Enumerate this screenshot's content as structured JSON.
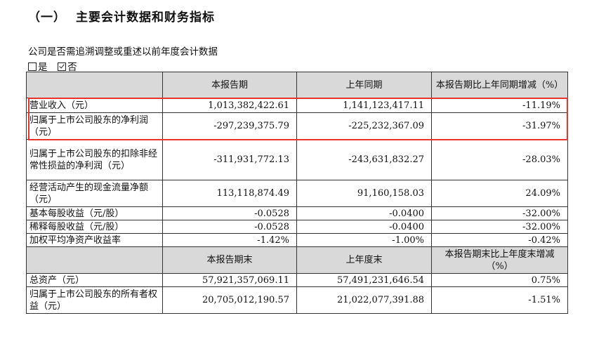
{
  "heading": {
    "paren": "（一）",
    "title": "主要会计数据和财务指标"
  },
  "question": "公司是否需追溯调整或重述以前年度会计数据",
  "options": {
    "yes": "是",
    "no": "否",
    "selected": "否"
  },
  "table1": {
    "headers": [
      "",
      "本报告期",
      "上年同期",
      "本报告期比上年同期增减（%）"
    ],
    "rows": [
      [
        "营业收入（元）",
        "1,013,382,422.61",
        "1,141,123,417.11",
        "-11.19%"
      ],
      [
        "归属于上市公司股东的净利润（元）",
        "-297,239,375.79",
        "-225,232,367.09",
        "-31.97%"
      ],
      [
        "归属于上市公司股东的扣除非经常性损益的净利润（元）",
        "-311,931,772.13",
        "-243,631,832.27",
        "-28.03%"
      ],
      [
        "经营活动产生的现金流量净额（元）",
        "113,118,874.49",
        "91,160,158.03",
        "24.09%"
      ],
      [
        "基本每股收益（元/股）",
        "-0.0528",
        "-0.0400",
        "-32.00%"
      ],
      [
        "稀释每股收益（元/股）",
        "-0.0528",
        "-0.0400",
        "-32.00%"
      ],
      [
        "加权平均净资产收益率",
        "-1.42%",
        "-1.00%",
        "-0.42%"
      ]
    ]
  },
  "table2": {
    "headers": [
      "",
      "本报告期末",
      "上年度末",
      "本报告期末比上年度末增减（%）"
    ],
    "rows": [
      [
        "总资产（元）",
        "57,921,357,069.11",
        "57,491,231,646.54",
        "0.75%"
      ],
      [
        "归属于上市公司股东的所有者权益（元）",
        "20,705,012,190.57",
        "21,022,077,391.88",
        "-1.51%"
      ]
    ]
  },
  "highlight_color": "#e8342a"
}
